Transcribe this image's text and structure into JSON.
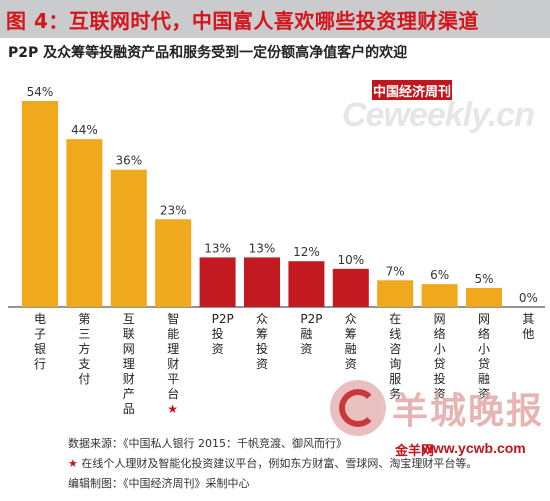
{
  "title": "图 4：互联网时代，中国富人喜欢哪些投资理财渠道",
  "subtitle": "P2P 及众筹等投融资产品和服务受到一定份额高净值客户的欢迎",
  "brand": {
    "magazine": "中国经济周刊",
    "watermark": "Ceweekly.cn"
  },
  "colors": {
    "gold": "#f0a91c",
    "red": "#c31a22",
    "title_red": "#d4151b",
    "title_bg": "#c9cbcd"
  },
  "footer": {
    "source": "数据来源：《中国私人银行 2015：千帆竞渡、御风而行》",
    "note_star": "★",
    "note": "在线个人理财及智能化投资建议平台，例如东方财富、雪球网、淘宝理财平台等。",
    "editor": "编辑制图：《中国经济周刊》采制中心"
  },
  "newspaper_logo": {
    "name": "羊城晚报",
    "prefix": "金羊网",
    "url": "www.ycwb.com"
  },
  "chart_data": {
    "type": "bar",
    "title": "",
    "xlabel": "",
    "ylabel": "",
    "ylim": [
      0,
      60
    ],
    "grid": false,
    "categories": [
      "电子银行",
      "第三方支付",
      "互联网理财产品",
      "智能理财平台★",
      "P2P 投资",
      "众筹投资",
      "P2P 融资",
      "众筹融资",
      "在线咨询服务",
      "网络小贷投资",
      "网络小贷融资",
      "其他"
    ],
    "values": [
      54,
      44,
      36,
      23,
      13,
      13,
      12,
      10,
      7,
      6,
      5,
      0
    ],
    "value_labels": [
      "54%",
      "44%",
      "36%",
      "23%",
      "13%",
      "13%",
      "12%",
      "10%",
      "7%",
      "6%",
      "5%",
      "0%"
    ],
    "bar_colors": [
      "gold",
      "gold",
      "gold",
      "gold",
      "red",
      "red",
      "red",
      "red",
      "gold",
      "gold",
      "gold",
      "gold"
    ]
  }
}
